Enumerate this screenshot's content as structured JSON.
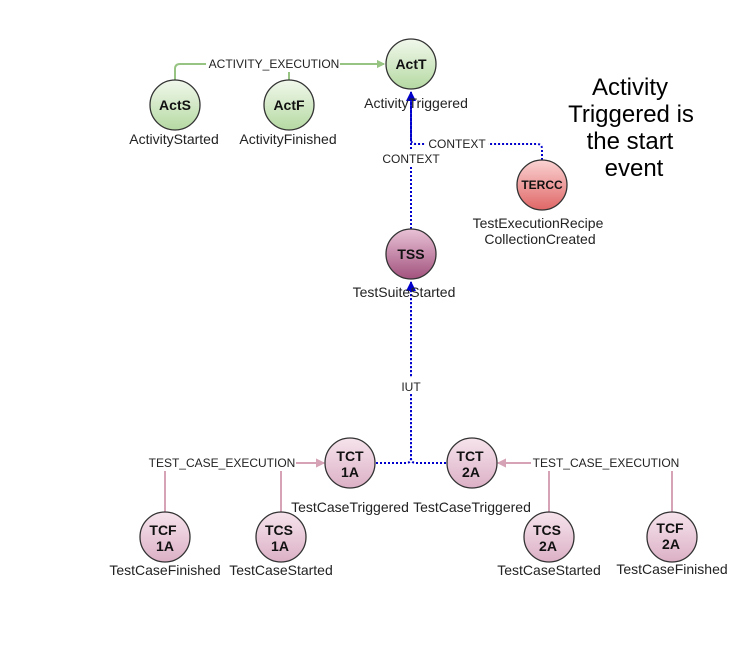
{
  "colors": {
    "green_edge": "#97c483",
    "blue_edge": "#0000cc",
    "pink_edge": "#d6a3b6",
    "green_fill_top": "#f1f8ec",
    "green_fill_bottom": "#b5d9a2",
    "red_fill_top": "#fbd3d3",
    "red_fill_bottom": "#e06666",
    "purple_fill_top": "#e9c2d6",
    "purple_fill_bottom": "#a2527e",
    "pink_fill_top": "#f6e4ec",
    "pink_fill_bottom": "#dcb0c6",
    "node_stroke": "#333333"
  },
  "nodes": {
    "actt": {
      "abbr": "ActT",
      "label": "ActivityTriggered"
    },
    "acts": {
      "abbr": "ActS",
      "label": "ActivityStarted"
    },
    "actf": {
      "abbr": "ActF",
      "label": "ActivityFinished"
    },
    "tercc": {
      "abbr": "TERCC",
      "label_line1": "TestExecutionRecipe",
      "label_line2": "CollectionCreated"
    },
    "tss": {
      "abbr": "TSS",
      "label": "TestSuiteStarted"
    },
    "tct1a": {
      "abbr_line1": "TCT",
      "abbr_line2": "1A",
      "label": "TestCaseTriggered"
    },
    "tct2a": {
      "abbr_line1": "TCT",
      "abbr_line2": "2A",
      "label": "TestCaseTriggered"
    },
    "tcf1a": {
      "abbr_line1": "TCF",
      "abbr_line2": "1A",
      "label": "TestCaseFinished"
    },
    "tcs1a": {
      "abbr_line1": "TCS",
      "abbr_line2": "1A",
      "label": "TestCaseStarted"
    },
    "tcs2a": {
      "abbr_line1": "TCS",
      "abbr_line2": "2A",
      "label": "TestCaseStarted"
    },
    "tcf2a": {
      "abbr_line1": "TCF",
      "abbr_line2": "2A",
      "label": "TestCaseFinished"
    }
  },
  "edges": {
    "activity_execution": "ACTIVITY_EXECUTION",
    "context_tss": "CONTEXT",
    "context_tercc": "CONTEXT",
    "iut": "IUT",
    "test_case_execution_left": "TEST_CASE_EXECUTION",
    "test_case_execution_right": "TEST_CASE_EXECUTION"
  },
  "note": {
    "line1": "Activity",
    "line2": "Triggered is",
    "line3": "the start",
    "line4": "event"
  }
}
